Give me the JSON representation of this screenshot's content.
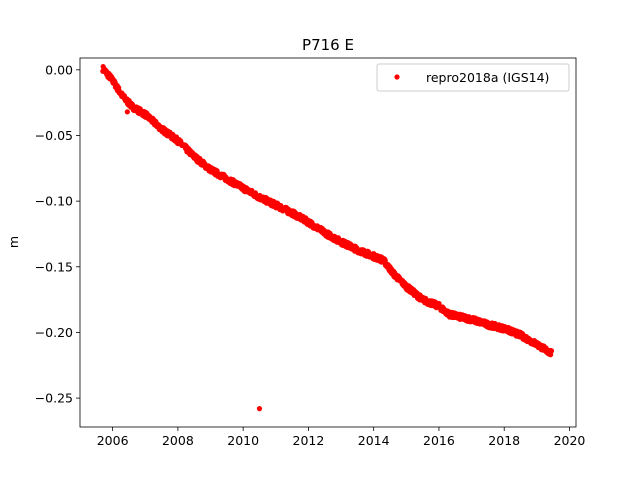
{
  "chart_data": {
    "type": "scatter",
    "title": "P716 E",
    "xlabel": "",
    "ylabel": "m",
    "xlim": [
      2005.0,
      2020.2
    ],
    "ylim": [
      -0.272,
      0.009
    ],
    "xticks": [
      2006,
      2008,
      2010,
      2012,
      2014,
      2016,
      2018,
      2020
    ],
    "xtick_labels": [
      "2006",
      "2008",
      "2010",
      "2012",
      "2014",
      "2016",
      "2018",
      "2020"
    ],
    "yticks": [
      0.0,
      -0.05,
      -0.1,
      -0.15,
      -0.2,
      -0.25
    ],
    "ytick_labels": [
      "0.00",
      "−0.05",
      "−0.10",
      "−0.15",
      "−0.20",
      "−0.25"
    ],
    "grid": false,
    "legend_position": "top-right",
    "series": [
      {
        "name": "repro2018a (IGS14)",
        "color": "#ff0000",
        "marker": "circle",
        "trend": [
          [
            2005.7,
            0.001
          ],
          [
            2006.0,
            -0.008
          ],
          [
            2006.3,
            -0.02
          ],
          [
            2006.6,
            -0.028
          ],
          [
            2007.0,
            -0.034
          ],
          [
            2007.5,
            -0.045
          ],
          [
            2008.0,
            -0.054
          ],
          [
            2008.5,
            -0.066
          ],
          [
            2009.0,
            -0.076
          ],
          [
            2009.5,
            -0.083
          ],
          [
            2010.0,
            -0.09
          ],
          [
            2010.5,
            -0.097
          ],
          [
            2011.0,
            -0.103
          ],
          [
            2011.5,
            -0.109
          ],
          [
            2012.0,
            -0.116
          ],
          [
            2012.5,
            -0.124
          ],
          [
            2013.0,
            -0.131
          ],
          [
            2013.5,
            -0.137
          ],
          [
            2014.0,
            -0.142
          ],
          [
            2014.3,
            -0.145
          ],
          [
            2014.6,
            -0.155
          ],
          [
            2015.0,
            -0.165
          ],
          [
            2015.5,
            -0.175
          ],
          [
            2016.0,
            -0.18
          ],
          [
            2016.3,
            -0.186
          ],
          [
            2016.6,
            -0.188
          ],
          [
            2017.0,
            -0.19
          ],
          [
            2017.5,
            -0.194
          ],
          [
            2018.0,
            -0.197
          ],
          [
            2018.5,
            -0.202
          ],
          [
            2019.0,
            -0.209
          ],
          [
            2019.45,
            -0.216
          ]
        ],
        "outliers": [
          [
            2010.5,
            -0.258
          ],
          [
            2006.45,
            -0.032
          ]
        ]
      }
    ]
  }
}
